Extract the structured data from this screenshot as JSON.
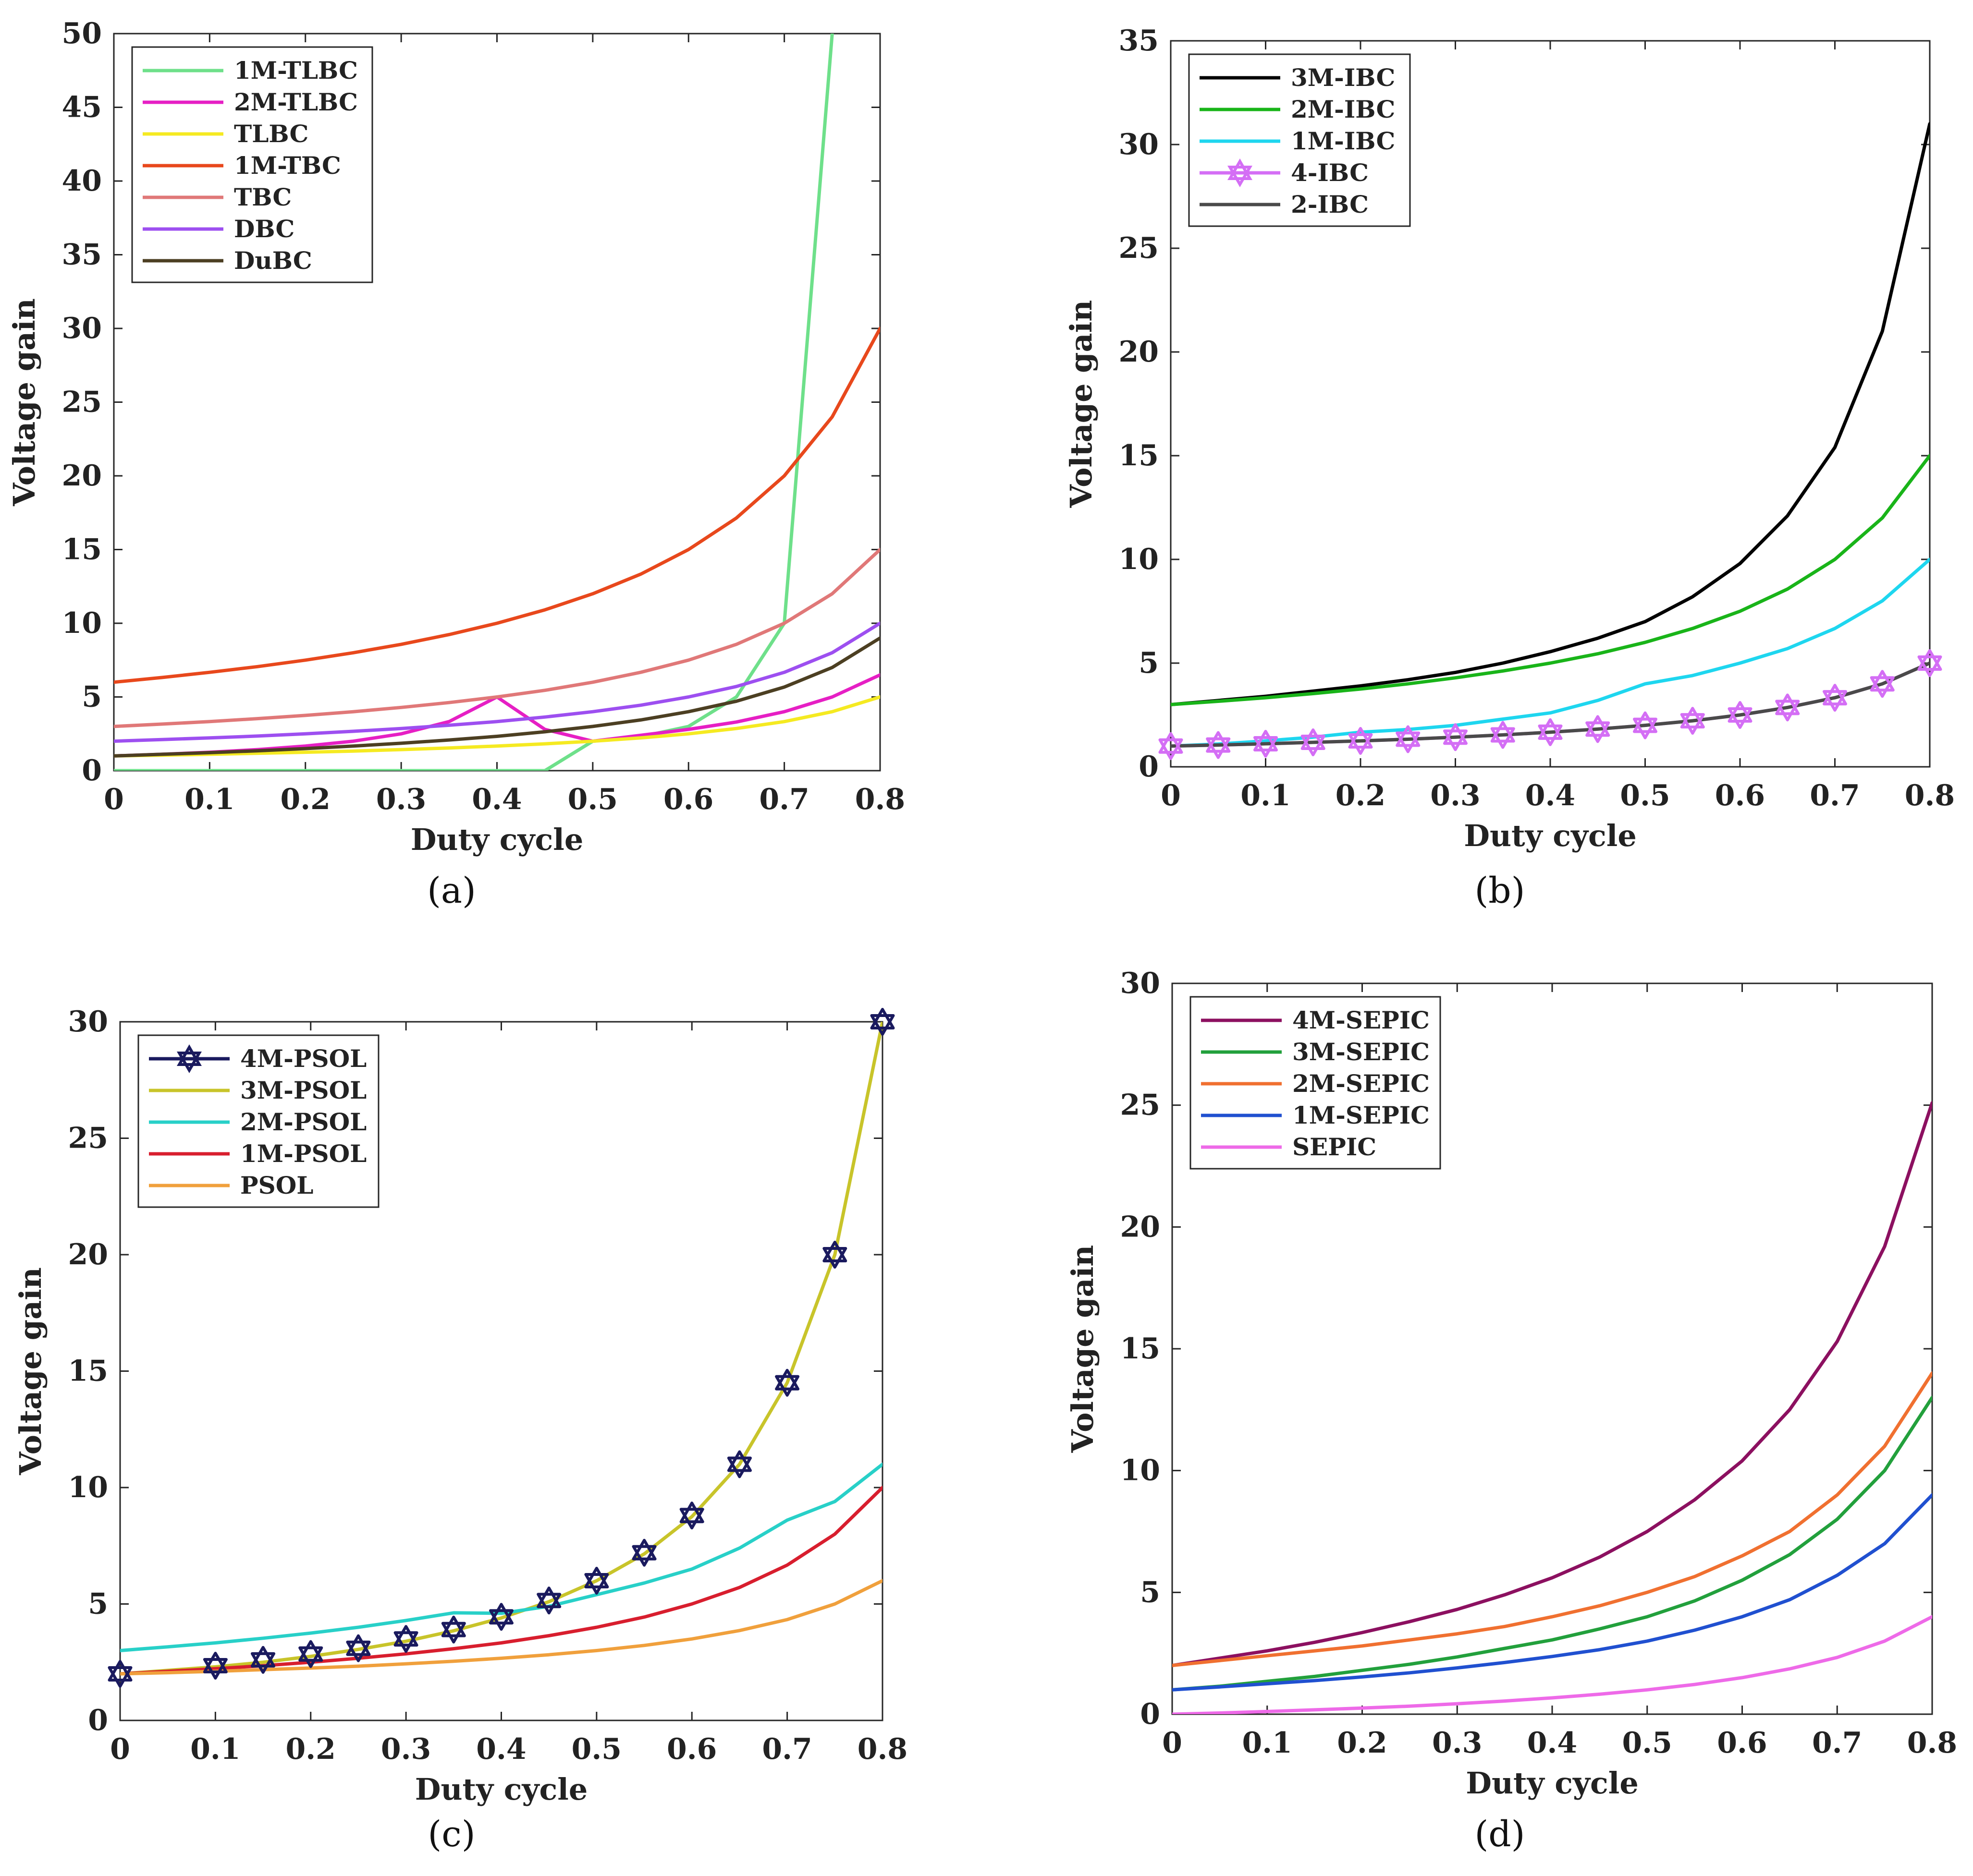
{
  "chart_data": [
    {
      "type": "line",
      "id": "a",
      "caption": "(a)",
      "xlabel": "Duty cycle",
      "ylabel": "Voltage gain",
      "xlim": [
        0,
        0.8
      ],
      "ylim": [
        0,
        50
      ],
      "xticks": [
        0,
        0.1,
        0.2,
        0.3,
        0.4,
        0.5,
        0.6,
        0.7,
        0.8
      ],
      "xtick_labels": [
        "0",
        "0.1",
        "0.2",
        "0.3",
        "0.4",
        "0.5",
        "0.6",
        "0.7",
        "0.8"
      ],
      "yticks": [
        0,
        5,
        10,
        15,
        20,
        25,
        30,
        35,
        40,
        45,
        50
      ],
      "ytick_labels": [
        "0",
        "5",
        "10",
        "15",
        "20",
        "25",
        "30",
        "35",
        "40",
        "45",
        "50"
      ],
      "legend_position": "top-left",
      "x": [
        0,
        0.05,
        0.1,
        0.15,
        0.2,
        0.25,
        0.3,
        0.35,
        0.4,
        0.45,
        0.5,
        0.55,
        0.6,
        0.65,
        0.7,
        0.75,
        0.8
      ],
      "series": [
        {
          "name": "1M-TLBC",
          "color": "#6ee08a",
          "values": [
            0,
            0,
            0,
            0,
            0,
            0,
            0,
            0,
            0,
            0,
            2.0,
            2.3,
            3.0,
            5.0,
            10.0,
            50.0,
            null
          ]
        },
        {
          "name": "2M-TLBC",
          "color": "#e61fc4",
          "values": [
            1.0,
            1.11,
            1.25,
            1.43,
            1.67,
            2.0,
            2.5,
            3.33,
            5.0,
            2.8,
            2.0,
            2.4,
            2.8,
            3.3,
            4.0,
            5.0,
            6.5
          ]
        },
        {
          "name": "TLBC",
          "color": "#f5ea21",
          "values": [
            1.0,
            1.05,
            1.11,
            1.18,
            1.25,
            1.33,
            1.43,
            1.54,
            1.67,
            1.82,
            2.0,
            2.22,
            2.5,
            2.86,
            3.33,
            4.0,
            5.0
          ]
        },
        {
          "name": "1M-TBC",
          "color": "#e8481c",
          "values": [
            6.0,
            6.32,
            6.67,
            7.06,
            7.5,
            8.0,
            8.57,
            9.23,
            10.0,
            10.91,
            12.0,
            13.33,
            15.0,
            17.14,
            20.0,
            24.0,
            30.0
          ]
        },
        {
          "name": "TBC",
          "color": "#e07878",
          "values": [
            3.0,
            3.16,
            3.33,
            3.53,
            3.75,
            4.0,
            4.29,
            4.62,
            5.0,
            5.45,
            6.0,
            6.67,
            7.5,
            8.57,
            10.0,
            12.0,
            15.0
          ]
        },
        {
          "name": "DBC",
          "color": "#9d4ff0",
          "values": [
            2.0,
            2.11,
            2.22,
            2.35,
            2.5,
            2.67,
            2.86,
            3.08,
            3.33,
            3.64,
            4.0,
            4.44,
            5.0,
            5.71,
            6.67,
            8.0,
            10.0
          ]
        },
        {
          "name": "DuBC",
          "color": "#4c3f22",
          "values": [
            1.0,
            1.11,
            1.22,
            1.35,
            1.5,
            1.67,
            1.86,
            2.08,
            2.33,
            2.64,
            3.0,
            3.44,
            4.0,
            4.71,
            5.67,
            7.0,
            9.0
          ]
        }
      ]
    },
    {
      "type": "line",
      "id": "b",
      "caption": "(b)",
      "xlabel": "Duty cycle",
      "ylabel": "Voltage gain",
      "xlim": [
        0,
        0.8
      ],
      "ylim": [
        0,
        35
      ],
      "xticks": [
        0,
        0.1,
        0.2,
        0.3,
        0.4,
        0.5,
        0.6,
        0.7,
        0.8
      ],
      "xtick_labels": [
        "0",
        "0.1",
        "0.2",
        "0.3",
        "0.4",
        "0.5",
        "0.6",
        "0.7",
        "0.8"
      ],
      "yticks": [
        0,
        5,
        10,
        15,
        20,
        25,
        30,
        35
      ],
      "ytick_labels": [
        "0",
        "5",
        "10",
        "15",
        "20",
        "25",
        "30",
        "35"
      ],
      "legend_position": "top-left",
      "x": [
        0,
        0.05,
        0.1,
        0.15,
        0.2,
        0.25,
        0.3,
        0.35,
        0.4,
        0.45,
        0.5,
        0.55,
        0.6,
        0.65,
        0.7,
        0.75,
        0.8
      ],
      "series": [
        {
          "name": "3M-IBC",
          "color": "#000000",
          "values": [
            3.0,
            3.2,
            3.4,
            3.65,
            3.9,
            4.2,
            4.55,
            5.0,
            5.55,
            6.2,
            7.0,
            8.2,
            9.8,
            12.1,
            15.4,
            21.0,
            31.0
          ]
        },
        {
          "name": "2M-IBC",
          "color": "#19b419",
          "values": [
            3.0,
            3.16,
            3.33,
            3.53,
            3.75,
            4.0,
            4.29,
            4.62,
            5.0,
            5.45,
            6.0,
            6.67,
            7.5,
            8.57,
            10.0,
            12.0,
            15.0
          ]
        },
        {
          "name": "1M-IBC",
          "color": "#1ed6ef",
          "values": [
            1.0,
            1.1,
            1.25,
            1.43,
            1.67,
            1.8,
            2.0,
            2.3,
            2.6,
            3.2,
            4.0,
            4.4,
            5.0,
            5.7,
            6.67,
            8.0,
            10.0
          ]
        },
        {
          "name": "4-IBC",
          "color": "#d46ef5",
          "marker": "hexagram",
          "values": [
            1.0,
            1.05,
            1.11,
            1.18,
            1.25,
            1.33,
            1.43,
            1.54,
            1.67,
            1.82,
            2.0,
            2.22,
            2.5,
            2.86,
            3.33,
            4.0,
            5.0
          ]
        },
        {
          "name": "2-IBC",
          "color": "#4a4a4a",
          "values": [
            1.0,
            1.05,
            1.11,
            1.18,
            1.25,
            1.33,
            1.43,
            1.54,
            1.67,
            1.82,
            2.0,
            2.22,
            2.5,
            2.86,
            3.33,
            4.0,
            5.0
          ]
        }
      ]
    },
    {
      "type": "line",
      "id": "c",
      "caption": "(c)",
      "xlabel": "Duty cycle",
      "ylabel": "Voltage gain",
      "xlim": [
        0,
        0.8
      ],
      "ylim": [
        0,
        30
      ],
      "xticks": [
        0,
        0.1,
        0.2,
        0.3,
        0.4,
        0.5,
        0.6,
        0.7,
        0.8
      ],
      "xtick_labels": [
        "0",
        "0.1",
        "0.2",
        "0.3",
        "0.4",
        "0.5",
        "0.6",
        "0.7",
        "0.8"
      ],
      "yticks": [
        0,
        5,
        10,
        15,
        20,
        25,
        30
      ],
      "ytick_labels": [
        "0",
        "5",
        "10",
        "15",
        "20",
        "25",
        "30"
      ],
      "legend_position": "top-left",
      "x": [
        0,
        0.05,
        0.1,
        0.15,
        0.2,
        0.25,
        0.3,
        0.35,
        0.4,
        0.45,
        0.5,
        0.55,
        0.6,
        0.65,
        0.7,
        0.75,
        0.8
      ],
      "series": [
        {
          "name": "4M-PSOL",
          "color": "#1a1a5e",
          "marker": "hexagram",
          "line": false,
          "values": [
            2.0,
            null,
            2.35,
            2.6,
            2.85,
            3.1,
            3.5,
            3.9,
            4.45,
            5.15,
            6.0,
            7.2,
            8.8,
            11.0,
            14.5,
            20.0,
            30.0
          ]
        },
        {
          "name": "3M-PSOL",
          "color": "#c8c42a",
          "values": [
            2.0,
            2.15,
            2.3,
            2.5,
            2.75,
            3.05,
            3.4,
            3.85,
            4.4,
            5.1,
            6.0,
            7.15,
            8.75,
            11.0,
            14.5,
            20.0,
            30.0
          ]
        },
        {
          "name": "2M-PSOL",
          "color": "#28d0c8",
          "values": [
            3.0,
            3.16,
            3.33,
            3.53,
            3.75,
            4.0,
            4.29,
            4.62,
            4.6,
            4.9,
            5.4,
            5.9,
            6.5,
            7.4,
            8.6,
            9.4,
            11.0
          ]
        },
        {
          "name": "1M-PSOL",
          "color": "#d81e2e",
          "values": [
            2.0,
            2.11,
            2.22,
            2.35,
            2.5,
            2.67,
            2.86,
            3.08,
            3.33,
            3.64,
            4.0,
            4.44,
            5.0,
            5.71,
            6.67,
            8.0,
            10.0
          ]
        },
        {
          "name": "PSOL",
          "color": "#f0a03c",
          "values": [
            2.0,
            2.05,
            2.11,
            2.18,
            2.25,
            2.33,
            2.43,
            2.54,
            2.67,
            2.82,
            3.0,
            3.22,
            3.5,
            3.86,
            4.33,
            5.0,
            6.0
          ]
        }
      ]
    },
    {
      "type": "line",
      "id": "d",
      "caption": "(d)",
      "xlabel": "Duty cycle",
      "ylabel": "Voltage gain",
      "xlim": [
        0,
        0.8
      ],
      "ylim": [
        0,
        30
      ],
      "xticks": [
        0,
        0.1,
        0.2,
        0.3,
        0.4,
        0.5,
        0.6,
        0.7,
        0.8
      ],
      "xtick_labels": [
        "0",
        "0.1",
        "0.2",
        "0.3",
        "0.4",
        "0.5",
        "0.6",
        "0.7",
        "0.8"
      ],
      "yticks": [
        0,
        5,
        10,
        15,
        20,
        25,
        30
      ],
      "ytick_labels": [
        "0",
        "5",
        "10",
        "15",
        "20",
        "25",
        "30"
      ],
      "legend_position": "top-left",
      "x": [
        0,
        0.05,
        0.1,
        0.15,
        0.2,
        0.25,
        0.3,
        0.35,
        0.4,
        0.45,
        0.5,
        0.55,
        0.6,
        0.65,
        0.7,
        0.75,
        0.8
      ],
      "series": [
        {
          "name": "4M-SEPIC",
          "color": "#8c1060",
          "values": [
            2.0,
            2.3,
            2.6,
            2.95,
            3.35,
            3.8,
            4.3,
            4.9,
            5.6,
            6.45,
            7.5,
            8.8,
            10.4,
            12.5,
            15.3,
            19.2,
            25.1
          ]
        },
        {
          "name": "3M-SEPIC",
          "color": "#22a03c",
          "values": [
            1.0,
            1.15,
            1.35,
            1.55,
            1.8,
            2.05,
            2.35,
            2.7,
            3.05,
            3.5,
            4.0,
            4.65,
            5.5,
            6.55,
            8.0,
            10.0,
            13.0
          ]
        },
        {
          "name": "2M-SEPIC",
          "color": "#f07030",
          "values": [
            2.0,
            2.2,
            2.4,
            2.6,
            2.8,
            3.05,
            3.3,
            3.6,
            4.0,
            4.45,
            5.0,
            5.65,
            6.5,
            7.5,
            9.0,
            11.0,
            14.0
          ]
        },
        {
          "name": "1M-SEPIC",
          "color": "#2050d0",
          "values": [
            1.0,
            1.12,
            1.25,
            1.38,
            1.53,
            1.7,
            1.9,
            2.12,
            2.37,
            2.65,
            3.0,
            3.45,
            4.0,
            4.7,
            5.7,
            7.0,
            9.0
          ]
        },
        {
          "name": "SEPIC",
          "color": "#ee6ae8",
          "values": [
            0.0,
            0.05,
            0.11,
            0.18,
            0.25,
            0.33,
            0.43,
            0.54,
            0.67,
            0.82,
            1.0,
            1.22,
            1.5,
            1.86,
            2.33,
            3.0,
            4.0
          ]
        }
      ]
    }
  ]
}
